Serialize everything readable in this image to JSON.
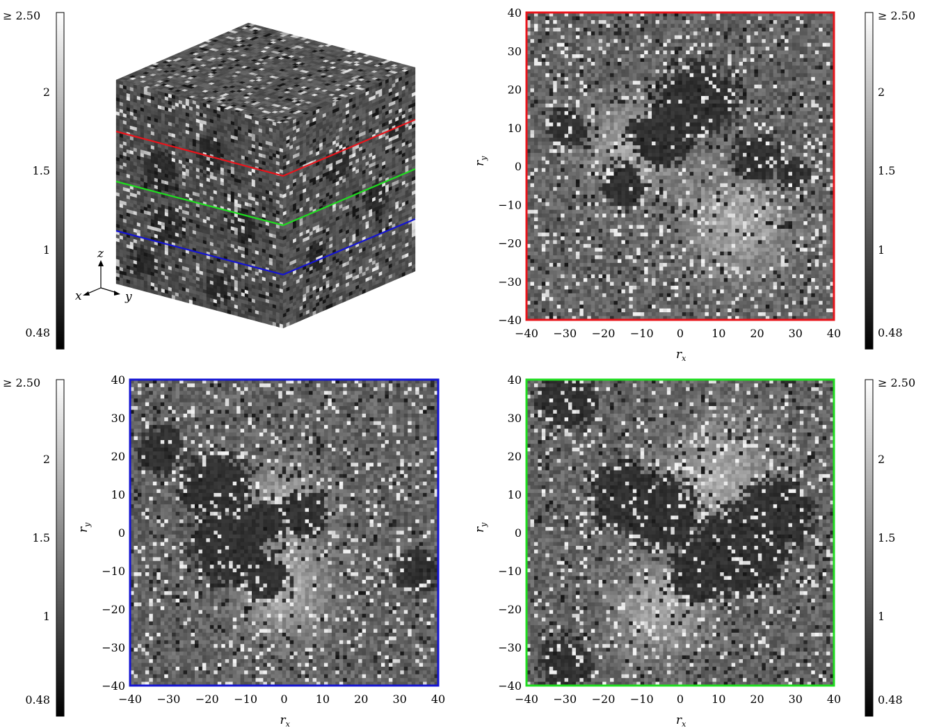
{
  "colorbar": {
    "max_label": "≥ 2.50",
    "min_label": "0.48",
    "ticks": [
      "2",
      "1.5",
      "1"
    ]
  },
  "axes": {
    "x_label": "r",
    "x_sub": "x",
    "y_label": "r",
    "y_sub": "y",
    "ticks": [
      "−40",
      "−30",
      "−20",
      "−10",
      "0",
      "10",
      "20",
      "30",
      "40"
    ]
  },
  "cube": {
    "axis_x": "x",
    "axis_y": "y",
    "axis_z": "z"
  },
  "colors": {
    "slice_top": "#e8141b",
    "slice_mid": "#1fdc1f",
    "slice_bottom": "#1414d2"
  },
  "chart_data": [
    {
      "type": "heatmap",
      "name": "3D cube view",
      "slices": [
        "red",
        "green",
        "blue"
      ],
      "value_range": [
        0.48,
        2.5
      ]
    },
    {
      "type": "heatmap",
      "frame": "red",
      "xlim": [
        -40,
        40
      ],
      "ylim": [
        -40,
        40
      ],
      "value_range": [
        0.48,
        2.5
      ],
      "dark_clusters": [
        [
          5,
          18,
          10
        ],
        [
          -5,
          8,
          8
        ],
        [
          20,
          2,
          6
        ],
        [
          30,
          -2,
          4
        ],
        [
          -15,
          -5,
          6
        ],
        [
          -30,
          10,
          5
        ]
      ],
      "bright_regions": [
        [
          -12,
          5,
          12
        ],
        [
          15,
          -15,
          14
        ]
      ]
    },
    {
      "type": "heatmap",
      "frame": "blue",
      "xlim": [
        -40,
        40
      ],
      "ylim": [
        -40,
        40
      ],
      "value_range": [
        0.48,
        2.5
      ],
      "dark_clusters": [
        [
          -18,
          12,
          9
        ],
        [
          -15,
          -4,
          10
        ],
        [
          -5,
          3,
          6
        ],
        [
          5,
          5,
          6
        ],
        [
          -5,
          -12,
          6
        ],
        [
          35,
          -10,
          6
        ],
        [
          -32,
          22,
          6
        ]
      ],
      "bright_regions": [
        [
          0,
          8,
          10
        ],
        [
          0,
          -15,
          12
        ]
      ]
    },
    {
      "type": "heatmap",
      "frame": "green",
      "xlim": [
        -40,
        40
      ],
      "ylim": [
        -40,
        40
      ],
      "value_range": [
        0.48,
        2.5
      ],
      "dark_clusters": [
        [
          -15,
          10,
          9
        ],
        [
          -5,
          5,
          10
        ],
        [
          15,
          -5,
          12
        ],
        [
          25,
          5,
          10
        ],
        [
          5,
          -10,
          8
        ],
        [
          -30,
          35,
          8
        ],
        [
          -30,
          -35,
          7
        ]
      ],
      "bright_regions": [
        [
          10,
          15,
          14
        ],
        [
          -5,
          -20,
          12
        ]
      ]
    }
  ]
}
